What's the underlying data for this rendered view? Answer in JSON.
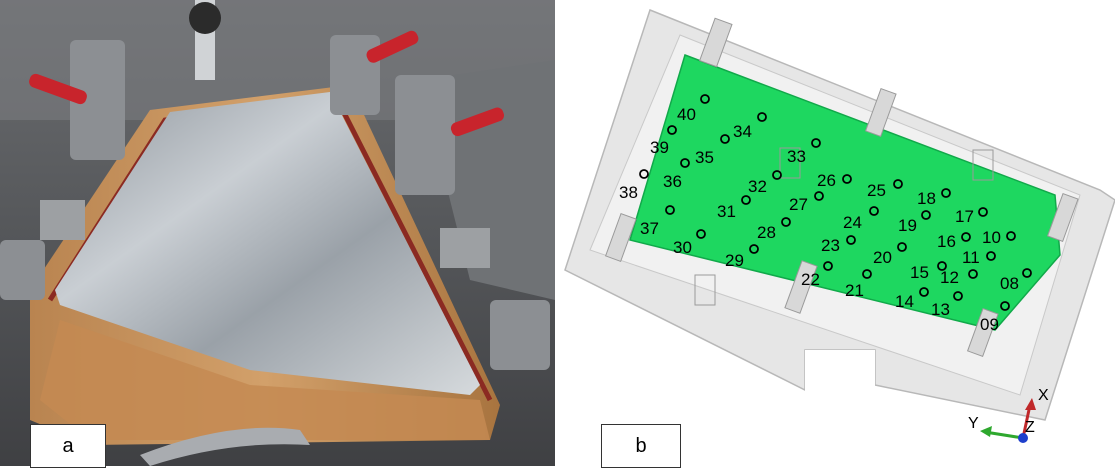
{
  "panels": {
    "a": {
      "label": "a"
    },
    "b": {
      "label": "b"
    }
  },
  "axes": {
    "x": "X",
    "y": "Y",
    "z": "Z"
  },
  "colors": {
    "fixture_green": "#1ed760",
    "fixture_frame": "#e6e6e6",
    "wood": "#c8955e",
    "aluminum": "#b9bec3"
  },
  "measurement_points": [
    {
      "id": "40"
    },
    {
      "id": "39"
    },
    {
      "id": "35"
    },
    {
      "id": "34"
    },
    {
      "id": "33"
    },
    {
      "id": "38"
    },
    {
      "id": "36"
    },
    {
      "id": "32"
    },
    {
      "id": "26"
    },
    {
      "id": "25"
    },
    {
      "id": "18"
    },
    {
      "id": "17"
    },
    {
      "id": "31"
    },
    {
      "id": "27"
    },
    {
      "id": "24"
    },
    {
      "id": "19"
    },
    {
      "id": "37"
    },
    {
      "id": "28"
    },
    {
      "id": "16"
    },
    {
      "id": "10"
    },
    {
      "id": "30"
    },
    {
      "id": "29"
    },
    {
      "id": "23"
    },
    {
      "id": "20"
    },
    {
      "id": "11"
    },
    {
      "id": "22"
    },
    {
      "id": "15"
    },
    {
      "id": "12"
    },
    {
      "id": "08"
    },
    {
      "id": "21"
    },
    {
      "id": "14"
    },
    {
      "id": "13"
    },
    {
      "id": "09"
    }
  ]
}
